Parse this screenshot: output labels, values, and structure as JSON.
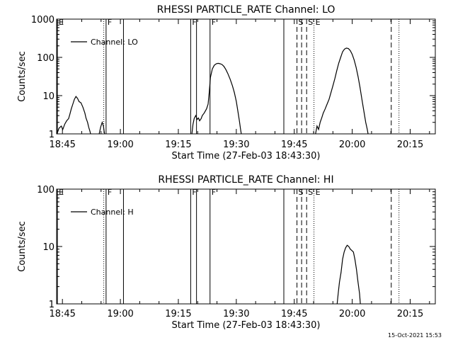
{
  "footer_timestamp": "15-Oct-2021 15:53",
  "chart_data": [
    {
      "type": "line",
      "title": "RHESSI PARTICLE_RATE Channel: LO",
      "xlabel": "Start Time (27-Feb-03 18:43:30)",
      "ylabel": "Counts/sec",
      "yscale": "log",
      "ylim": [
        1,
        1000
      ],
      "xlim_minutes": [
        0,
        98
      ],
      "x_ticks": [
        {
          "min": 1.5,
          "label": "18:45"
        },
        {
          "min": 16.5,
          "label": "19:00"
        },
        {
          "min": 31.5,
          "label": "19:15"
        },
        {
          "min": 46.5,
          "label": "19:30"
        },
        {
          "min": 61.5,
          "label": "19:45"
        },
        {
          "min": 76.5,
          "label": "20:00"
        },
        {
          "min": 91.5,
          "label": "20:15"
        }
      ],
      "y_ticks": [
        {
          "value": 1,
          "label": "1"
        },
        {
          "value": 10,
          "label": "10"
        },
        {
          "value": 100,
          "label": "100"
        },
        {
          "value": 1000,
          "label": "1000"
        }
      ],
      "legend": {
        "placement": "top-left",
        "entries": [
          "Channel: LO"
        ]
      },
      "markers": [
        {
          "min": 0.2,
          "style": "solid",
          "label": "E"
        },
        {
          "min": 12.2,
          "style": "dotted",
          "label": ""
        },
        {
          "min": 12.8,
          "style": "solid",
          "label": "F"
        },
        {
          "min": 17.3,
          "style": "solid",
          "label": ""
        },
        {
          "min": 34.7,
          "style": "solid",
          "label": "F"
        },
        {
          "min": 36.2,
          "style": "solid",
          "label": ""
        },
        {
          "min": 39.7,
          "style": "solid",
          "label": "F"
        },
        {
          "min": 58.8,
          "style": "solid",
          "label": ""
        },
        {
          "min": 62.2,
          "style": "dashed",
          "label": "S"
        },
        {
          "min": 63.4,
          "style": "dashed",
          "label": ""
        },
        {
          "min": 64.7,
          "style": "dashed",
          "label": "S"
        },
        {
          "min": 66.6,
          "style": "dotted",
          "label": "E"
        },
        {
          "min": 86.6,
          "style": "dashed",
          "label": ""
        },
        {
          "min": 88.6,
          "style": "dotted",
          "label": ""
        }
      ],
      "series": [
        {
          "segments": [
            [
              [
                0.1,
                1
              ],
              [
                0.6,
                1.4
              ],
              [
                1.2,
                1.6
              ],
              [
                1.6,
                1.3
              ],
              [
                2.1,
                1.8
              ],
              [
                2.6,
                2.2
              ],
              [
                3.1,
                2.5
              ],
              [
                3.4,
                3.2
              ],
              [
                3.8,
                4.5
              ],
              [
                4.2,
                6
              ],
              [
                4.6,
                8
              ],
              [
                5.0,
                9.5
              ],
              [
                5.4,
                8.5
              ],
              [
                5.8,
                7
              ],
              [
                6.3,
                6.5
              ],
              [
                6.8,
                5
              ],
              [
                7.3,
                3.5
              ],
              [
                7.6,
                2.6
              ],
              [
                8.0,
                2
              ],
              [
                8.3,
                1.5
              ],
              [
                8.6,
                1.2
              ],
              [
                8.8,
                1
              ]
            ],
            [
              [
                11.0,
                1
              ],
              [
                11.4,
                1.5
              ],
              [
                11.8,
                2
              ],
              [
                12.1,
                1.6
              ],
              [
                12.4,
                1
              ]
            ],
            [
              [
                35.0,
                1
              ],
              [
                35.3,
                1.8
              ],
              [
                35.6,
                2.5
              ],
              [
                36.0,
                3
              ],
              [
                36.4,
                2.4
              ],
              [
                36.7,
                2.6
              ],
              [
                37.0,
                2.2
              ],
              [
                37.4,
                2.5
              ],
              [
                37.7,
                3
              ],
              [
                38.2,
                3.5
              ],
              [
                38.8,
                4.5
              ],
              [
                39.2,
                6
              ],
              [
                39.5,
                12
              ],
              [
                39.8,
                30
              ],
              [
                40.3,
                50
              ],
              [
                40.8,
                62
              ],
              [
                41.3,
                68
              ],
              [
                41.8,
                70
              ],
              [
                42.3,
                68
              ],
              [
                42.8,
                65
              ],
              [
                43.3,
                58
              ],
              [
                43.8,
                48
              ],
              [
                44.3,
                38
              ],
              [
                44.9,
                27
              ],
              [
                45.5,
                18
              ],
              [
                46.0,
                12
              ],
              [
                46.5,
                7
              ],
              [
                46.9,
                4
              ],
              [
                47.3,
                2.2
              ],
              [
                47.6,
                1.3
              ],
              [
                47.8,
                1
              ]
            ],
            [
              [
                67.0,
                1
              ],
              [
                67.4,
                1.6
              ],
              [
                67.8,
                1.3
              ],
              [
                68.2,
                2
              ],
              [
                68.6,
                2.6
              ],
              [
                69.0,
                3.5
              ],
              [
                69.5,
                4.5
              ],
              [
                70.0,
                6
              ],
              [
                70.5,
                8
              ],
              [
                71.0,
                12
              ],
              [
                71.5,
                18
              ],
              [
                72.0,
                28
              ],
              [
                72.5,
                45
              ],
              [
                73.0,
                70
              ],
              [
                73.5,
                100
              ],
              [
                74.0,
                140
              ],
              [
                74.5,
                165
              ],
              [
                75.0,
                175
              ],
              [
                75.5,
                170
              ],
              [
                76.0,
                150
              ],
              [
                76.5,
                120
              ],
              [
                77.0,
                85
              ],
              [
                77.5,
                55
              ],
              [
                78.0,
                32
              ],
              [
                78.5,
                17
              ],
              [
                79.0,
                8
              ],
              [
                79.5,
                4
              ],
              [
                80.0,
                2
              ],
              [
                80.4,
                1.3
              ],
              [
                80.6,
                1
              ]
            ]
          ]
        }
      ]
    },
    {
      "type": "line",
      "title": "RHESSI PARTICLE_RATE Channel: HI",
      "xlabel": "Start Time (27-Feb-03 18:43:30)",
      "ylabel": "Counts/sec",
      "yscale": "log",
      "ylim": [
        1,
        100
      ],
      "xlim_minutes": [
        0,
        98
      ],
      "x_ticks": [
        {
          "min": 1.5,
          "label": "18:45"
        },
        {
          "min": 16.5,
          "label": "19:00"
        },
        {
          "min": 31.5,
          "label": "19:15"
        },
        {
          "min": 46.5,
          "label": "19:30"
        },
        {
          "min": 61.5,
          "label": "19:45"
        },
        {
          "min": 76.5,
          "label": "20:00"
        },
        {
          "min": 91.5,
          "label": "20:15"
        }
      ],
      "y_ticks": [
        {
          "value": 1,
          "label": "1"
        },
        {
          "value": 10,
          "label": "10"
        },
        {
          "value": 100,
          "label": "100"
        }
      ],
      "legend": {
        "placement": "top-left",
        "entries": [
          "Channel: H"
        ]
      },
      "markers": [
        {
          "min": 0.2,
          "style": "solid",
          "label": "E"
        },
        {
          "min": 12.2,
          "style": "dotted",
          "label": ""
        },
        {
          "min": 12.8,
          "style": "solid",
          "label": "F"
        },
        {
          "min": 17.3,
          "style": "solid",
          "label": ""
        },
        {
          "min": 34.7,
          "style": "solid",
          "label": "F"
        },
        {
          "min": 36.2,
          "style": "solid",
          "label": ""
        },
        {
          "min": 39.7,
          "style": "solid",
          "label": "F"
        },
        {
          "min": 58.8,
          "style": "solid",
          "label": ""
        },
        {
          "min": 62.2,
          "style": "dashed",
          "label": "S"
        },
        {
          "min": 63.4,
          "style": "dashed",
          "label": ""
        },
        {
          "min": 64.7,
          "style": "dashed",
          "label": "S"
        },
        {
          "min": 66.6,
          "style": "dotted",
          "label": "E"
        },
        {
          "min": 86.6,
          "style": "dashed",
          "label": ""
        },
        {
          "min": 88.6,
          "style": "dotted",
          "label": ""
        }
      ],
      "series": [
        {
          "segments": [
            [
              [
                72.6,
                1
              ],
              [
                72.9,
                1.6
              ],
              [
                73.2,
                2.4
              ],
              [
                73.6,
                3.5
              ],
              [
                74.0,
                6
              ],
              [
                74.4,
                8
              ],
              [
                74.8,
                9.5
              ],
              [
                75.2,
                10.5
              ],
              [
                75.6,
                10
              ],
              [
                76.0,
                9
              ],
              [
                76.4,
                8.5
              ],
              [
                76.8,
                8
              ],
              [
                77.2,
                6
              ],
              [
                77.6,
                4
              ],
              [
                78.0,
                2.4
              ],
              [
                78.4,
                1.5
              ],
              [
                78.6,
                1
              ]
            ]
          ]
        }
      ]
    }
  ]
}
